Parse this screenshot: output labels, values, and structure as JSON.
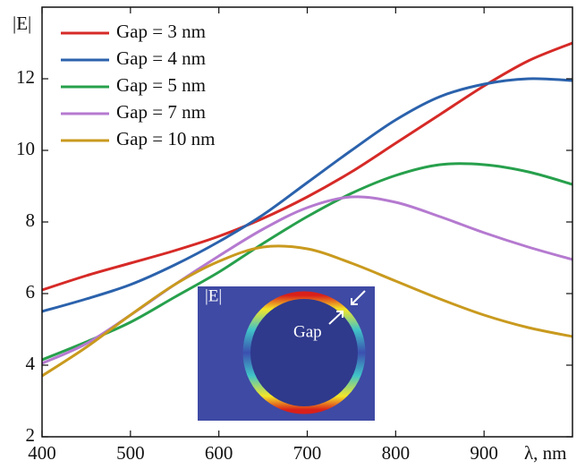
{
  "chart_data": {
    "type": "line",
    "x_label": "λ, nm",
    "y_label": "|E|",
    "x": [
      400,
      450,
      500,
      550,
      600,
      650,
      700,
      750,
      800,
      850,
      900,
      950,
      1000
    ],
    "series": [
      {
        "name": "Gap = 3 nm",
        "color": "#d62a27",
        "values": [
          6.1,
          6.5,
          6.85,
          7.2,
          7.6,
          8.1,
          8.7,
          9.4,
          10.2,
          11.0,
          11.8,
          12.5,
          13.0
        ]
      },
      {
        "name": "Gap = 4 nm",
        "color": "#2b62ac",
        "values": [
          5.5,
          5.85,
          6.25,
          6.8,
          7.45,
          8.2,
          9.1,
          10.0,
          10.85,
          11.5,
          11.85,
          12.0,
          11.95
        ]
      },
      {
        "name": "Gap = 5 nm",
        "color": "#27a04c",
        "values": [
          4.15,
          4.65,
          5.2,
          5.9,
          6.6,
          7.4,
          8.15,
          8.8,
          9.3,
          9.6,
          9.6,
          9.4,
          9.05
        ]
      },
      {
        "name": "Gap = 7 nm",
        "color": "#b57ad0",
        "values": [
          4.05,
          4.6,
          5.4,
          6.25,
          7.05,
          7.8,
          8.4,
          8.7,
          8.55,
          8.15,
          7.7,
          7.3,
          6.95
        ]
      },
      {
        "name": "Gap = 10 nm",
        "color": "#c99a1e",
        "values": [
          3.7,
          4.5,
          5.4,
          6.25,
          6.9,
          7.3,
          7.25,
          6.85,
          6.35,
          5.85,
          5.4,
          5.05,
          4.8
        ]
      }
    ],
    "xlim": [
      400,
      1000
    ],
    "ylim": [
      2,
      14
    ],
    "xticks": [
      400,
      500,
      600,
      700,
      800,
      900
    ],
    "yticks": [
      2,
      4,
      6,
      8,
      10,
      12
    ],
    "legend": "upper-left",
    "inset_label": "|E|",
    "inset_annotation": "Gap"
  }
}
